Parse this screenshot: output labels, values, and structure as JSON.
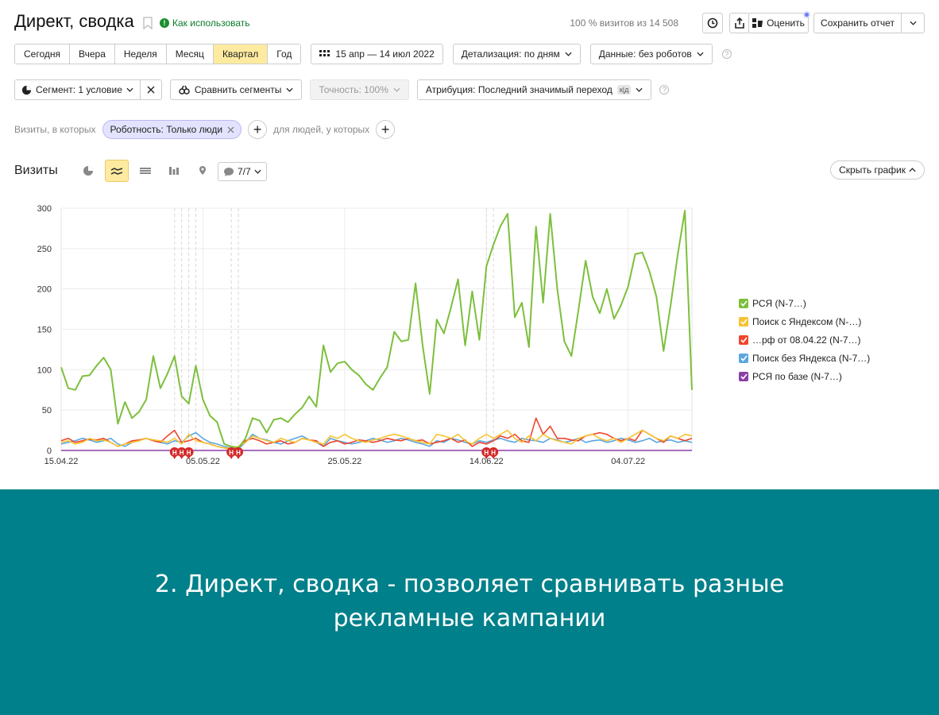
{
  "header": {
    "title": "Директ, сводка",
    "howto": "Как использовать",
    "visits_info": "100 % визитов из 14 508",
    "rate_label": "Оценить",
    "save_label": "Сохранить отчет"
  },
  "periods": [
    "Сегодня",
    "Вчера",
    "Неделя",
    "Месяц",
    "Квартал",
    "Год"
  ],
  "active_period": "Квартал",
  "date_range": "15 апр — 14 июл 2022",
  "detail_label": "Детализация: по дням",
  "data_label": "Данные: без роботов",
  "segment_label": "Сегмент: 1 условие",
  "compare_label": "Сравнить сегменты",
  "accuracy_label": "Точность: 100%",
  "attribution_label": "Атрибуция: Последний значимый переход",
  "attribution_badge": "к|д",
  "filters": {
    "visits_where": "Визиты, в которых",
    "chip": "Роботность: Только люди",
    "people_where": "для людей, у которых"
  },
  "chart_header": {
    "title": "Визиты",
    "comments": "7/7",
    "hide_label": "Скрыть график"
  },
  "chart_data": {
    "type": "line",
    "ylim": [
      0,
      300
    ],
    "yticks": [
      0,
      50,
      100,
      150,
      200,
      250,
      300
    ],
    "xtick_labels": [
      "15.04.22",
      "05.05.22",
      "25.05.22",
      "14.06.22",
      "04.07.22"
    ],
    "series": [
      {
        "name": "РСЯ (N-7…)",
        "color": "#7dbf3c",
        "values": [
          103,
          77,
          75,
          92,
          93,
          105,
          115,
          100,
          33,
          60,
          40,
          48,
          63,
          117,
          77,
          95,
          117,
          67,
          58,
          105,
          63,
          43,
          35,
          8,
          5,
          3,
          15,
          40,
          37,
          22,
          38,
          40,
          35,
          45,
          53,
          67,
          54,
          130,
          97,
          108,
          110,
          100,
          93,
          82,
          75,
          90,
          103,
          147,
          135,
          137,
          207,
          130,
          70,
          162,
          145,
          177,
          212,
          130,
          197,
          137,
          228,
          255,
          278,
          293,
          165,
          183,
          128,
          277,
          183,
          293,
          200,
          135,
          117,
          175,
          235,
          190,
          170,
          200,
          163,
          180,
          203,
          243,
          245,
          222,
          190,
          123,
          180,
          243,
          297,
          75
        ]
      },
      {
        "name": "Поиск с Яндексом (N-…)",
        "color": "#f5c431",
        "values": [
          10,
          12,
          8,
          10,
          15,
          12,
          13,
          10,
          5,
          8,
          10,
          12,
          15,
          13,
          12,
          10,
          15,
          8,
          20,
          12,
          10,
          8,
          5,
          3,
          3,
          5,
          10,
          18,
          15,
          12,
          10,
          15,
          12,
          10,
          15,
          13,
          10,
          8,
          18,
          15,
          20,
          15,
          12,
          10,
          13,
          15,
          18,
          20,
          18,
          15,
          12,
          10,
          8,
          20,
          18,
          15,
          20,
          12,
          8,
          15,
          20,
          15,
          20,
          25,
          15,
          10,
          18,
          12,
          20,
          15,
          12,
          10,
          8,
          15,
          18,
          20,
          15,
          12,
          15,
          10,
          15,
          20,
          25,
          20,
          15,
          12,
          18,
          15,
          20,
          18
        ]
      },
      {
        "name": "…рф от 08.04.22 (N-7…)",
        "color": "#f0452e",
        "values": [
          12,
          15,
          10,
          12,
          14,
          13,
          15,
          10,
          5,
          8,
          12,
          13,
          15,
          12,
          10,
          18,
          25,
          10,
          12,
          15,
          10,
          8,
          5,
          3,
          2,
          3,
          12,
          15,
          12,
          8,
          10,
          12,
          8,
          10,
          15,
          13,
          12,
          5,
          10,
          12,
          8,
          10,
          13,
          12,
          10,
          12,
          15,
          13,
          12,
          15,
          12,
          13,
          8,
          10,
          12,
          15,
          10,
          13,
          5,
          10,
          8,
          12,
          18,
          15,
          20,
          12,
          10,
          40,
          20,
          30,
          15,
          15,
          13,
          12,
          18,
          20,
          22,
          20,
          15,
          12,
          15,
          12,
          25,
          20,
          15,
          10,
          18,
          15,
          12,
          15
        ]
      },
      {
        "name": "Поиск без Яндекса (N-7…)",
        "color": "#5aa7e0",
        "values": [
          8,
          10,
          12,
          15,
          13,
          10,
          12,
          15,
          8,
          5,
          10,
          12,
          15,
          13,
          10,
          8,
          12,
          10,
          18,
          22,
          15,
          10,
          8,
          5,
          3,
          2,
          10,
          20,
          15,
          13,
          10,
          8,
          12,
          15,
          18,
          13,
          10,
          5,
          15,
          12,
          10,
          8,
          10,
          12,
          15,
          13,
          10,
          12,
          15,
          13,
          10,
          8,
          5,
          12,
          10,
          15,
          13,
          10,
          8,
          12,
          10,
          13,
          15,
          12,
          10,
          15,
          13,
          12,
          10,
          15,
          13,
          10,
          12,
          15,
          10,
          12,
          13,
          10,
          12,
          15,
          13,
          10,
          12,
          15,
          10,
          12,
          13,
          10,
          12,
          10
        ]
      },
      {
        "name": "РСЯ по базе (N-7…)",
        "color": "#8b3fa8",
        "values": [
          0,
          0,
          0,
          0,
          0,
          0,
          0,
          0,
          0,
          0,
          0,
          0,
          0,
          0,
          0,
          0,
          0,
          0,
          0,
          0,
          0,
          0,
          0,
          0,
          0,
          0,
          0,
          0,
          0,
          0,
          0,
          0,
          0,
          0,
          0,
          0,
          0,
          0,
          0,
          0,
          0,
          0,
          0,
          0,
          0,
          0,
          0,
          0,
          0,
          0,
          0,
          0,
          0,
          0,
          0,
          0,
          0,
          0,
          0,
          0,
          0,
          0,
          0,
          0,
          0,
          0,
          0,
          0,
          0,
          0,
          0,
          0,
          0,
          0,
          0,
          0,
          0,
          0,
          0,
          0,
          0,
          0,
          0,
          0,
          0,
          0,
          0,
          0,
          0,
          0
        ]
      }
    ]
  },
  "legend": [
    {
      "label": "РСЯ (N-7…)",
      "color": "#7dbf3c"
    },
    {
      "label": "Поиск с Яндексом (N-…)",
      "color": "#f5c431"
    },
    {
      "label": "…рф от 08.04.22 (N-7…)",
      "color": "#f0452e"
    },
    {
      "label": "Поиск без Яндекса (N-7…)",
      "color": "#5aa7e0"
    },
    {
      "label": "РСЯ по базе (N-7…)",
      "color": "#8b3fa8"
    }
  ],
  "marker_letter": "Н",
  "banner": {
    "line1": "2. Директ, сводка - позволяет сравнивать разные",
    "line2": "рекламные кампании"
  }
}
